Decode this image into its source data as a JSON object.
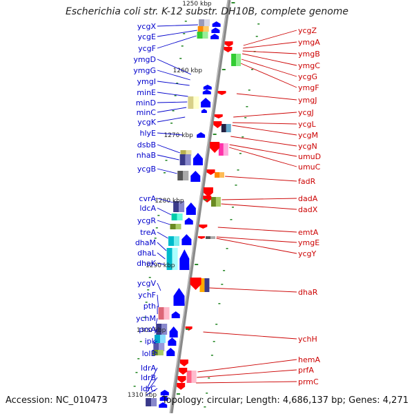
{
  "title": "Escherichia coli str. K-12 substr. DH10B, complete genome",
  "accession": "Accession: NC_010473",
  "topology": "Topology: circular; Length: 4,686,137 bp; Genes: 4,271",
  "colors": {
    "forward_gene_label": "#0000cc",
    "reverse_gene_label": "#cc0000",
    "forward_arrow": "#0000ff",
    "reverse_arrow": "#ff0000",
    "backbone": "#8a8a8a",
    "tick": "#2a8a2a"
  },
  "ruler": [
    {
      "label": "1250 kbp"
    },
    {
      "label": "1260 kbp"
    },
    {
      "label": "1270 kbp"
    },
    {
      "label": "1280 kbp"
    },
    {
      "label": "1290 kbp"
    },
    {
      "label": "1300 kbp"
    },
    {
      "label": "1310 kbp"
    }
  ],
  "forward_genes": [
    {
      "name": "ycgX"
    },
    {
      "name": "ycgE"
    },
    {
      "name": "ycgF"
    },
    {
      "name": "ymgD"
    },
    {
      "name": "ymgG"
    },
    {
      "name": "ymgI"
    },
    {
      "name": "minE"
    },
    {
      "name": "minD"
    },
    {
      "name": "minC"
    },
    {
      "name": "ycgK"
    },
    {
      "name": "hlyE"
    },
    {
      "name": "dsbB"
    },
    {
      "name": "nhaB"
    },
    {
      "name": "ycgB"
    },
    {
      "name": "cvrA"
    },
    {
      "name": "ldcA"
    },
    {
      "name": "ycgR"
    },
    {
      "name": "treA"
    },
    {
      "name": "dhaM"
    },
    {
      "name": "dhaL"
    },
    {
      "name": "dhaK"
    },
    {
      "name": "ycgV"
    },
    {
      "name": "ychF"
    },
    {
      "name": "pth"
    },
    {
      "name": "ychM"
    },
    {
      "name": "prsA"
    },
    {
      "name": "ipk"
    },
    {
      "name": "lolB"
    },
    {
      "name": "ldrA"
    },
    {
      "name": "ldrB"
    },
    {
      "name": "ldrC"
    }
  ],
  "reverse_genes": [
    {
      "name": "ycgZ"
    },
    {
      "name": "ymgA"
    },
    {
      "name": "ymgB"
    },
    {
      "name": "ymgC"
    },
    {
      "name": "ycgG"
    },
    {
      "name": "ymgF"
    },
    {
      "name": "ymgJ"
    },
    {
      "name": "ycgJ"
    },
    {
      "name": "ycgL"
    },
    {
      "name": "ycgM"
    },
    {
      "name": "ycgN"
    },
    {
      "name": "umuD"
    },
    {
      "name": "umuC"
    },
    {
      "name": "fadR"
    },
    {
      "name": "dadA"
    },
    {
      "name": "dadX"
    },
    {
      "name": "emtA"
    },
    {
      "name": "ymgE"
    },
    {
      "name": "ycgY"
    },
    {
      "name": "dhaR"
    },
    {
      "name": "ychH"
    },
    {
      "name": "hemA"
    },
    {
      "name": "prfA"
    },
    {
      "name": "prmC"
    }
  ]
}
